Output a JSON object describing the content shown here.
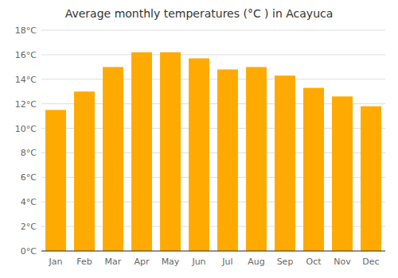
{
  "chart_data": {
    "type": "bar",
    "title": "Average monthly temperatures (°C ) in Acayuca",
    "categories": [
      "Jan",
      "Feb",
      "Mar",
      "Apr",
      "May",
      "Jun",
      "Jul",
      "Aug",
      "Sep",
      "Oct",
      "Nov",
      "Dec"
    ],
    "values": [
      11.5,
      13.0,
      15.0,
      16.2,
      16.2,
      15.7,
      14.8,
      15.0,
      14.3,
      13.3,
      12.6,
      11.8
    ],
    "color": "#FFAA00",
    "ylim": [
      0,
      18
    ],
    "yticks": [
      {
        "value": 0,
        "label": "0°C"
      },
      {
        "value": 2,
        "label": "2°C"
      },
      {
        "value": 4,
        "label": "4°C"
      },
      {
        "value": 6,
        "label": "6°C"
      },
      {
        "value": 8,
        "label": "8°C"
      },
      {
        "value": 10,
        "label": "10°C"
      },
      {
        "value": 12,
        "label": "12°C"
      },
      {
        "value": 14,
        "label": "14°C"
      },
      {
        "value": 16,
        "label": "16°C"
      },
      {
        "value": 18,
        "label": "18°C"
      }
    ],
    "grid": true
  }
}
